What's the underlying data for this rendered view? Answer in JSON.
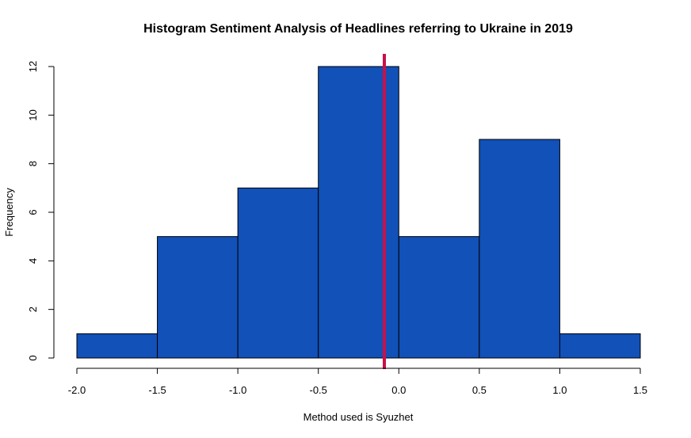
{
  "chart_data": {
    "type": "bar",
    "title": "Histogram Sentiment Analysis of Headlines referring to Ukraine in 2019",
    "xlabel": "Method used is Syuzhet",
    "ylabel": "Frequency",
    "bins": [
      {
        "start": -2.0,
        "end": -1.5,
        "count": 1
      },
      {
        "start": -1.5,
        "end": -1.0,
        "count": 5
      },
      {
        "start": -1.0,
        "end": -0.5,
        "count": 7
      },
      {
        "start": -0.5,
        "end": 0.0,
        "count": 12
      },
      {
        "start": 0.0,
        "end": 0.5,
        "count": 5
      },
      {
        "start": 0.5,
        "end": 1.0,
        "count": 9
      },
      {
        "start": 1.0,
        "end": 1.5,
        "count": 1
      }
    ],
    "xlim": [
      -2.0,
      1.5
    ],
    "ylim": [
      0,
      12
    ],
    "xticks": [
      "-2.0",
      "-1.5",
      "-1.0",
      "-0.5",
      "0.0",
      "0.5",
      "1.0",
      "1.5"
    ],
    "yticks": [
      "0",
      "2",
      "4",
      "6",
      "8",
      "10",
      "12"
    ],
    "reference_line_x": -0.09,
    "colors": {
      "bar_fill": "#1151B8",
      "reference_line": "#C8104A"
    },
    "grid": false,
    "legend": "none"
  }
}
